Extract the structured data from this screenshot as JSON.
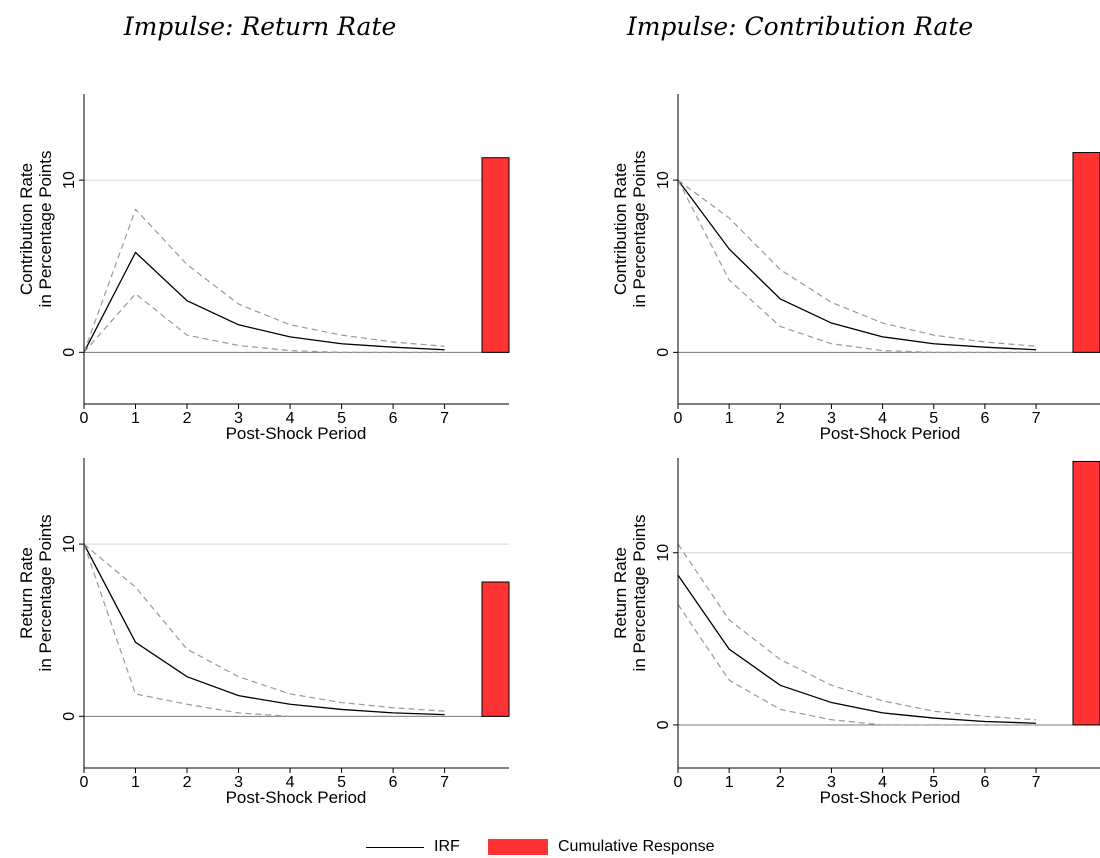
{
  "column_titles": [
    "Impulse: Return Rate",
    "Impulse: Contribution Rate"
  ],
  "legend": {
    "irf_label": "IRF",
    "cumulative_label": "Cumulative Response",
    "irf_color": "#000000",
    "band_color": "#999999",
    "bar_color": "#ff3333"
  },
  "chart_data": [
    {
      "type": "line",
      "panel": "top-left",
      "impulse": "Return Rate",
      "xlabel": "Post-Shock Period",
      "ylabel": [
        "Contribution Rate",
        "in Percentage Points"
      ],
      "x": [
        0,
        1,
        2,
        3,
        4,
        5,
        6,
        7
      ],
      "xticks": [
        0,
        1,
        2,
        3,
        4,
        5,
        6,
        7
      ],
      "yticks": [
        0,
        10
      ],
      "ylim": [
        -3,
        15
      ],
      "series": [
        {
          "values": [
            0,
            5.8,
            3.0,
            1.6,
            0.9,
            0.5,
            0.3,
            0.15
          ]
        },
        {
          "values": [
            0,
            8.3,
            5.1,
            2.8,
            1.6,
            1.0,
            0.6,
            0.35
          ]
        },
        {
          "values": [
            0,
            3.4,
            1.0,
            0.4,
            0.1,
            0.0,
            0.0,
            0.0
          ]
        }
      ],
      "cumulative_response": 11.3
    },
    {
      "type": "line",
      "panel": "top-right",
      "impulse": "Contribution Rate",
      "xlabel": "Post-Shock Period",
      "ylabel": [
        "Contribution Rate",
        "in Percentage Points"
      ],
      "x": [
        0,
        1,
        2,
        3,
        4,
        5,
        6,
        7
      ],
      "xticks": [
        0,
        1,
        2,
        3,
        4,
        5,
        6,
        7
      ],
      "yticks": [
        0,
        10
      ],
      "ylim": [
        -3,
        15
      ],
      "series": [
        {
          "values": [
            10,
            6.0,
            3.1,
            1.7,
            0.9,
            0.5,
            0.3,
            0.15
          ]
        },
        {
          "values": [
            10,
            7.8,
            4.8,
            2.9,
            1.7,
            1.0,
            0.6,
            0.35
          ]
        },
        {
          "values": [
            10,
            4.2,
            1.5,
            0.5,
            0.1,
            0.0,
            0.0,
            0.0
          ]
        }
      ],
      "cumulative_response": 11.6
    },
    {
      "type": "line",
      "panel": "bottom-left",
      "impulse": "Return Rate",
      "xlabel": "Post-Shock Period",
      "ylabel": [
        "Return Rate",
        "in Percentage Points"
      ],
      "x": [
        0,
        1,
        2,
        3,
        4,
        5,
        6,
        7
      ],
      "xticks": [
        0,
        1,
        2,
        3,
        4,
        5,
        6,
        7
      ],
      "yticks": [
        0,
        10
      ],
      "ylim": [
        -3,
        15
      ],
      "series": [
        {
          "values": [
            10,
            4.3,
            2.3,
            1.2,
            0.7,
            0.4,
            0.2,
            0.1
          ]
        },
        {
          "values": [
            10,
            7.5,
            3.9,
            2.3,
            1.3,
            0.8,
            0.5,
            0.3
          ]
        },
        {
          "values": [
            10,
            1.3,
            0.7,
            0.2,
            0.0,
            0.0,
            0.0,
            0.0
          ]
        }
      ],
      "cumulative_response": 7.8
    },
    {
      "type": "line",
      "panel": "bottom-right",
      "impulse": "Contribution Rate",
      "xlabel": "Post-Shock Period",
      "ylabel": [
        "Return Rate",
        "in Percentage Points"
      ],
      "x": [
        0,
        1,
        2,
        3,
        4,
        5,
        6,
        7
      ],
      "xticks": [
        0,
        1,
        2,
        3,
        4,
        5,
        6,
        7
      ],
      "yticks": [
        0,
        10
      ],
      "ylim": [
        -2.5,
        15.5
      ],
      "series": [
        {
          "values": [
            8.7,
            4.4,
            2.3,
            1.3,
            0.7,
            0.4,
            0.2,
            0.1
          ]
        },
        {
          "values": [
            10.5,
            6.1,
            3.8,
            2.3,
            1.4,
            0.8,
            0.5,
            0.3
          ]
        },
        {
          "values": [
            7.0,
            2.6,
            0.9,
            0.3,
            0.0,
            0.0,
            0.0,
            0.0
          ]
        }
      ],
      "cumulative_response": 15.3
    }
  ]
}
